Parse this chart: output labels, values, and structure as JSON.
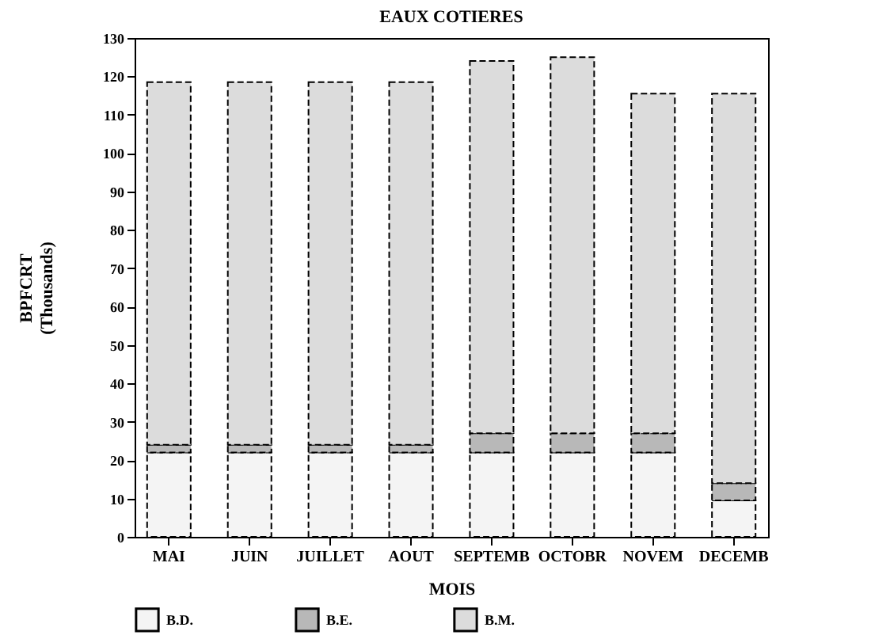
{
  "chart_data": {
    "type": "bar",
    "title": "EAUX COTIERES",
    "xlabel": "MOIS",
    "ylabel": "BPFCRT\n(Thousands)",
    "categories": [
      "MAI",
      "JUIN",
      "JUILLET",
      "AOUT",
      "SEPTEMB",
      "OCTOBR",
      "NOVEM",
      "DECEMB"
    ],
    "stacked": true,
    "series": [
      {
        "name": "B.D.",
        "color": "#f4f4f4",
        "values": [
          22,
          22,
          22,
          22,
          22,
          22,
          22,
          9.5
        ]
      },
      {
        "name": "B.E.",
        "color": "#b8b8b8",
        "values": [
          2,
          2,
          2,
          2,
          5,
          5,
          5,
          4.5
        ]
      },
      {
        "name": "B.M.",
        "color": "#dcdcdc",
        "values": [
          94.5,
          94.5,
          94.5,
          94.5,
          97,
          98,
          88.5,
          101.5
        ]
      }
    ],
    "ylim": [
      0,
      130
    ],
    "yticks": [
      0,
      10,
      20,
      30,
      40,
      50,
      60,
      70,
      80,
      90,
      100,
      110,
      120,
      130
    ],
    "grid": false,
    "legend": "bottom"
  }
}
